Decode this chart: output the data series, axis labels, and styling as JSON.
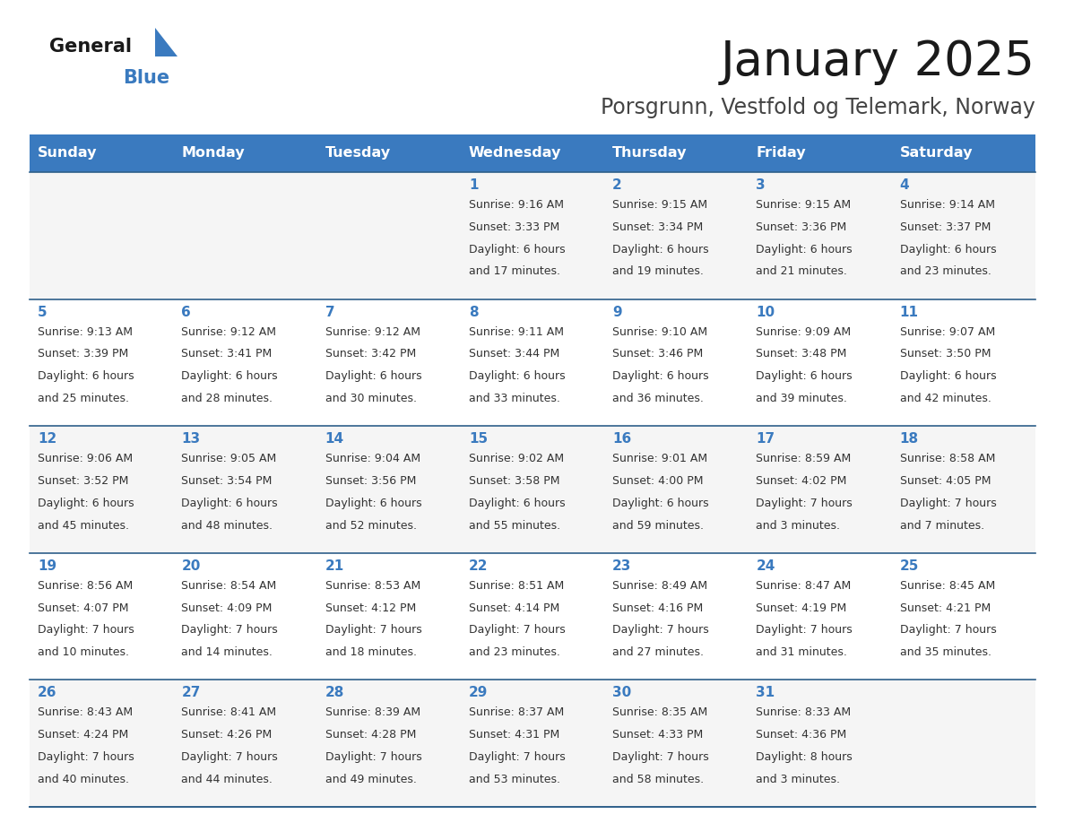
{
  "title": "January 2025",
  "subtitle": "Porsgrunn, Vestfold og Telemark, Norway",
  "days_of_week": [
    "Sunday",
    "Monday",
    "Tuesday",
    "Wednesday",
    "Thursday",
    "Friday",
    "Saturday"
  ],
  "header_bg": "#3a7abf",
  "header_text": "#ffffff",
  "row_bg_odd": "#f5f5f5",
  "row_bg_even": "#ffffff",
  "separator_color": "#2e5f8a",
  "day_number_color": "#3a7abf",
  "text_color": "#333333",
  "calendar_data": [
    [
      {
        "day": "",
        "sunrise": "",
        "sunset": "",
        "daylight": ""
      },
      {
        "day": "",
        "sunrise": "",
        "sunset": "",
        "daylight": ""
      },
      {
        "day": "",
        "sunrise": "",
        "sunset": "",
        "daylight": ""
      },
      {
        "day": "1",
        "sunrise": "9:16 AM",
        "sunset": "3:33 PM",
        "daylight_h": "6 hours",
        "daylight_m": "and 17 minutes."
      },
      {
        "day": "2",
        "sunrise": "9:15 AM",
        "sunset": "3:34 PM",
        "daylight_h": "6 hours",
        "daylight_m": "and 19 minutes."
      },
      {
        "day": "3",
        "sunrise": "9:15 AM",
        "sunset": "3:36 PM",
        "daylight_h": "6 hours",
        "daylight_m": "and 21 minutes."
      },
      {
        "day": "4",
        "sunrise": "9:14 AM",
        "sunset": "3:37 PM",
        "daylight_h": "6 hours",
        "daylight_m": "and 23 minutes."
      }
    ],
    [
      {
        "day": "5",
        "sunrise": "9:13 AM",
        "sunset": "3:39 PM",
        "daylight_h": "6 hours",
        "daylight_m": "and 25 minutes."
      },
      {
        "day": "6",
        "sunrise": "9:12 AM",
        "sunset": "3:41 PM",
        "daylight_h": "6 hours",
        "daylight_m": "and 28 minutes."
      },
      {
        "day": "7",
        "sunrise": "9:12 AM",
        "sunset": "3:42 PM",
        "daylight_h": "6 hours",
        "daylight_m": "and 30 minutes."
      },
      {
        "day": "8",
        "sunrise": "9:11 AM",
        "sunset": "3:44 PM",
        "daylight_h": "6 hours",
        "daylight_m": "and 33 minutes."
      },
      {
        "day": "9",
        "sunrise": "9:10 AM",
        "sunset": "3:46 PM",
        "daylight_h": "6 hours",
        "daylight_m": "and 36 minutes."
      },
      {
        "day": "10",
        "sunrise": "9:09 AM",
        "sunset": "3:48 PM",
        "daylight_h": "6 hours",
        "daylight_m": "and 39 minutes."
      },
      {
        "day": "11",
        "sunrise": "9:07 AM",
        "sunset": "3:50 PM",
        "daylight_h": "6 hours",
        "daylight_m": "and 42 minutes."
      }
    ],
    [
      {
        "day": "12",
        "sunrise": "9:06 AM",
        "sunset": "3:52 PM",
        "daylight_h": "6 hours",
        "daylight_m": "and 45 minutes."
      },
      {
        "day": "13",
        "sunrise": "9:05 AM",
        "sunset": "3:54 PM",
        "daylight_h": "6 hours",
        "daylight_m": "and 48 minutes."
      },
      {
        "day": "14",
        "sunrise": "9:04 AM",
        "sunset": "3:56 PM",
        "daylight_h": "6 hours",
        "daylight_m": "and 52 minutes."
      },
      {
        "day": "15",
        "sunrise": "9:02 AM",
        "sunset": "3:58 PM",
        "daylight_h": "6 hours",
        "daylight_m": "and 55 minutes."
      },
      {
        "day": "16",
        "sunrise": "9:01 AM",
        "sunset": "4:00 PM",
        "daylight_h": "6 hours",
        "daylight_m": "and 59 minutes."
      },
      {
        "day": "17",
        "sunrise": "8:59 AM",
        "sunset": "4:02 PM",
        "daylight_h": "7 hours",
        "daylight_m": "and 3 minutes."
      },
      {
        "day": "18",
        "sunrise": "8:58 AM",
        "sunset": "4:05 PM",
        "daylight_h": "7 hours",
        "daylight_m": "and 7 minutes."
      }
    ],
    [
      {
        "day": "19",
        "sunrise": "8:56 AM",
        "sunset": "4:07 PM",
        "daylight_h": "7 hours",
        "daylight_m": "and 10 minutes."
      },
      {
        "day": "20",
        "sunrise": "8:54 AM",
        "sunset": "4:09 PM",
        "daylight_h": "7 hours",
        "daylight_m": "and 14 minutes."
      },
      {
        "day": "21",
        "sunrise": "8:53 AM",
        "sunset": "4:12 PM",
        "daylight_h": "7 hours",
        "daylight_m": "and 18 minutes."
      },
      {
        "day": "22",
        "sunrise": "8:51 AM",
        "sunset": "4:14 PM",
        "daylight_h": "7 hours",
        "daylight_m": "and 23 minutes."
      },
      {
        "day": "23",
        "sunrise": "8:49 AM",
        "sunset": "4:16 PM",
        "daylight_h": "7 hours",
        "daylight_m": "and 27 minutes."
      },
      {
        "day": "24",
        "sunrise": "8:47 AM",
        "sunset": "4:19 PM",
        "daylight_h": "7 hours",
        "daylight_m": "and 31 minutes."
      },
      {
        "day": "25",
        "sunrise": "8:45 AM",
        "sunset": "4:21 PM",
        "daylight_h": "7 hours",
        "daylight_m": "and 35 minutes."
      }
    ],
    [
      {
        "day": "26",
        "sunrise": "8:43 AM",
        "sunset": "4:24 PM",
        "daylight_h": "7 hours",
        "daylight_m": "and 40 minutes."
      },
      {
        "day": "27",
        "sunrise": "8:41 AM",
        "sunset": "4:26 PM",
        "daylight_h": "7 hours",
        "daylight_m": "and 44 minutes."
      },
      {
        "day": "28",
        "sunrise": "8:39 AM",
        "sunset": "4:28 PM",
        "daylight_h": "7 hours",
        "daylight_m": "and 49 minutes."
      },
      {
        "day": "29",
        "sunrise": "8:37 AM",
        "sunset": "4:31 PM",
        "daylight_h": "7 hours",
        "daylight_m": "and 53 minutes."
      },
      {
        "day": "30",
        "sunrise": "8:35 AM",
        "sunset": "4:33 PM",
        "daylight_h": "7 hours",
        "daylight_m": "and 58 minutes."
      },
      {
        "day": "31",
        "sunrise": "8:33 AM",
        "sunset": "4:36 PM",
        "daylight_h": "8 hours",
        "daylight_m": "and 3 minutes."
      },
      {
        "day": "",
        "sunrise": "",
        "sunset": "",
        "daylight_h": "",
        "daylight_m": ""
      }
    ]
  ]
}
